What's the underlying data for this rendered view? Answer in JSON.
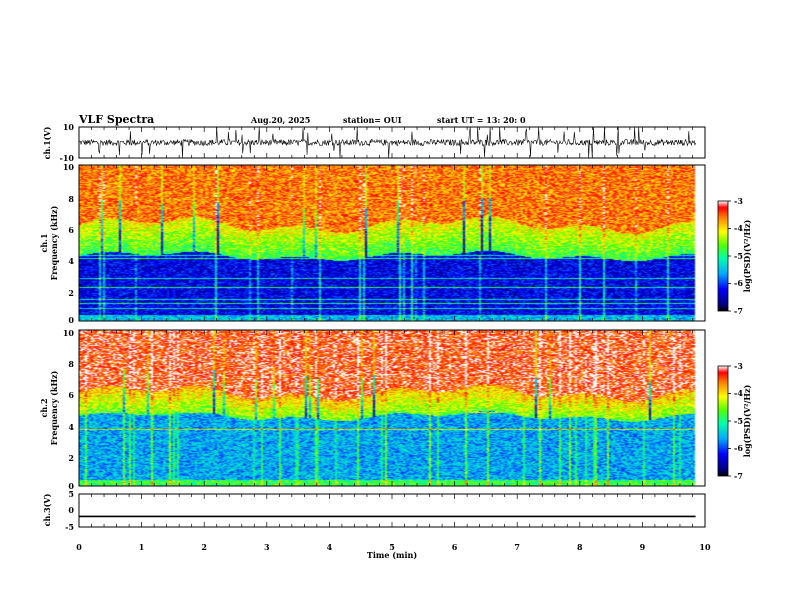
{
  "header": {
    "title": "VLF Spectra",
    "date": "Aug.20, 2025",
    "station": "station= OUI",
    "start": "start  UT  =   13: 20: 0"
  },
  "chart_data": [
    {
      "type": "line",
      "panel": "ch1-waveform",
      "ylabel": "ch.1(V)",
      "ylim": [
        -10,
        10
      ],
      "yticks": [
        "10",
        "-10"
      ],
      "xlim": [
        0,
        10
      ],
      "baseline_v": 0,
      "typical_amplitude_v": 2,
      "data_extent_min": 9.85
    },
    {
      "type": "heatmap",
      "panel": "ch1-spectrogram",
      "ylabel_top": "ch.1",
      "ylabel": "Frequency (kHz)",
      "ylim": [
        0,
        10
      ],
      "yticks": [
        "0",
        "2",
        "4",
        "6",
        "8",
        "10"
      ],
      "xlim": [
        0,
        10
      ],
      "data_extent_min": 9.85,
      "colorbar": {
        "label": "log(PSD)(V²/Hz)",
        "range": [
          -7,
          -3
        ],
        "ticks": [
          "-3",
          "-4",
          "-5",
          "-6",
          "-7"
        ]
      },
      "profile": {
        "low_band_khz": [
          0,
          4.2
        ],
        "low_level": -6.3,
        "mid_band_khz": [
          4.2,
          6.2
        ],
        "mid_level": -4.8,
        "high_band_khz": [
          6.2,
          10
        ],
        "high_level": -3.6
      }
    },
    {
      "type": "heatmap",
      "panel": "ch2-spectrogram",
      "ylabel_top": "ch.2",
      "ylabel": "Frequency (kHz)",
      "ylim": [
        0,
        10
      ],
      "yticks": [
        "0",
        "2",
        "4",
        "6",
        "8",
        "10"
      ],
      "xlim": [
        0,
        10
      ],
      "data_extent_min": 9.85,
      "colorbar": {
        "label": "log(PSD)(V²/Hz)",
        "range": [
          -7,
          -3
        ],
        "ticks": [
          "-3",
          "-4",
          "-5",
          "-6",
          "-7"
        ]
      },
      "profile": {
        "low_band_khz": [
          0,
          4.5
        ],
        "low_level": -5.6,
        "mid_band_khz": [
          4.5,
          6.0
        ],
        "mid_level": -4.6,
        "high_band_khz": [
          6.0,
          10
        ],
        "high_level": -3.3
      }
    },
    {
      "type": "line",
      "panel": "ch3-waveform",
      "ylabel": "ch.3(V)",
      "ylim": [
        -5,
        5
      ],
      "yticks": [
        "5",
        "0",
        "-5"
      ],
      "xlim": [
        0,
        10
      ],
      "value_v": -1.8,
      "data_extent_min": 9.85,
      "xlabel": "Time  (min)",
      "xticks": [
        "0",
        "1",
        "2",
        "3",
        "4",
        "5",
        "6",
        "7",
        "8",
        "9",
        "10"
      ]
    }
  ]
}
